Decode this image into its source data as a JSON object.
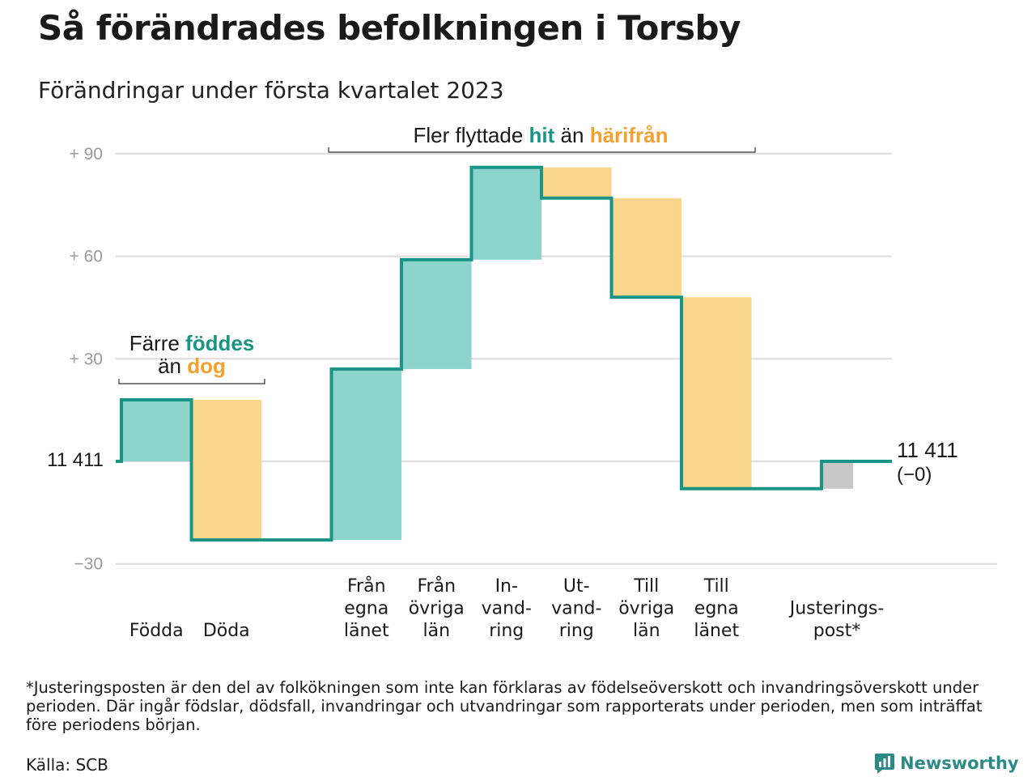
{
  "header": {
    "title": "Så förändrades befolkningen i Torsby",
    "subtitle": "Förändringar under första kvartalet 2023"
  },
  "colors": {
    "increase_fill": "#8dd5cc",
    "decrease_fill": "#fad58c",
    "adjustment_fill": "#c8c8c8",
    "step_line": "#1a9485",
    "accent_teal": "#1a9485",
    "accent_orange": "#f2a12e",
    "grid": "#dddddd",
    "tick_label": "#9a9a9a"
  },
  "annotations": {
    "births_deaths": {
      "line1_prefix": "Färre ",
      "line1_highlight": "föddes",
      "line2_prefix": "än ",
      "line2_highlight": "dog"
    },
    "migration": {
      "prefix": "Fler flyttade ",
      "highlight1": "hit",
      "middle": " än ",
      "highlight2": "härifrån"
    }
  },
  "start_label": "11 411",
  "end_label": {
    "line1": "11 411",
    "line2": "(−0)"
  },
  "chart_data": {
    "type": "waterfall",
    "title": "Så förändrades befolkningen i Torsby",
    "subtitle": "Förändringar under första kvartalet 2023",
    "baseline": 11411,
    "y_ticks": [
      "+ 90",
      "+ 60",
      "+ 30",
      "−30"
    ],
    "y_tick_values": [
      90,
      60,
      30,
      -30
    ],
    "ylim": [
      -30,
      90
    ],
    "grid": true,
    "categories": [
      {
        "label": [
          "Födda"
        ],
        "change": 18,
        "kind": "increase"
      },
      {
        "label": [
          "Döda"
        ],
        "change": -41,
        "kind": "decrease"
      },
      {
        "label": [],
        "change": 0,
        "kind": "gap"
      },
      {
        "label": [
          "Från",
          "egna",
          "länet"
        ],
        "change": 50,
        "kind": "increase"
      },
      {
        "label": [
          "Från",
          "övriga",
          "län"
        ],
        "change": 32,
        "kind": "increase"
      },
      {
        "label": [
          "In-",
          "vand-",
          "ring"
        ],
        "change": 27,
        "kind": "increase"
      },
      {
        "label": [
          "Ut-",
          "vand-",
          "ring"
        ],
        "change": -9,
        "kind": "decrease"
      },
      {
        "label": [
          "Till",
          "övriga",
          "län"
        ],
        "change": -29,
        "kind": "decrease"
      },
      {
        "label": [
          "Till",
          "egna",
          "länet"
        ],
        "change": -56,
        "kind": "decrease"
      },
      {
        "label": [],
        "change": 0,
        "kind": "gap"
      },
      {
        "label": [
          "Justerings-",
          "post*"
        ],
        "change": 8,
        "kind": "adjustment"
      }
    ],
    "final_value": 11411,
    "final_change": "−0"
  },
  "footer": {
    "footnote": "*Justeringsposten är den del av folkökningen som inte kan förklaras av födelseöverskott och invandringsöverskott under perioden. Där ingår födslar, dödsfall, invandringar och utvandringar som rapporterats under perioden, men som inträffat före periodens början.",
    "source": "Källa: SCB",
    "logo_text": "Newsworthy"
  }
}
